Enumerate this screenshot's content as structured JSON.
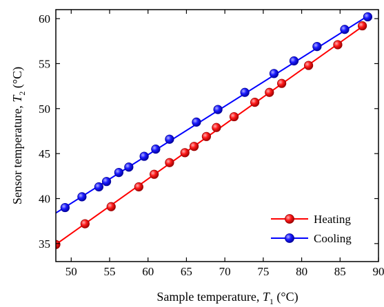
{
  "chart_data": {
    "type": "line",
    "xlabel": {
      "prefix": "Sample temperature, ",
      "symbol": "T",
      "subscript": "1",
      "suffix": " (°C)"
    },
    "ylabel": {
      "prefix": "Sensor temperature, ",
      "symbol": "T",
      "subscript": "2",
      "suffix": " (°C)"
    },
    "xlim": [
      48,
      90
    ],
    "ylim": [
      33,
      61
    ],
    "xticks": [
      50,
      55,
      60,
      65,
      70,
      75,
      80,
      85,
      90
    ],
    "yticks": [
      35,
      40,
      45,
      50,
      55,
      60
    ],
    "legend_position": "bottom-right",
    "grid": false,
    "series": [
      {
        "name": "Heating",
        "color": "#ff0000",
        "marker": "circle",
        "line_start": [
          48,
          34.9
        ],
        "line_end": [
          88.2,
          59.3
        ],
        "points": [
          [
            48.0,
            34.9
          ],
          [
            51.8,
            37.2
          ],
          [
            55.2,
            39.1
          ],
          [
            58.8,
            41.3
          ],
          [
            60.8,
            42.7
          ],
          [
            62.8,
            44.0
          ],
          [
            64.8,
            45.1
          ],
          [
            66.0,
            45.8
          ],
          [
            67.6,
            46.9
          ],
          [
            68.9,
            47.9
          ],
          [
            71.2,
            49.1
          ],
          [
            73.9,
            50.7
          ],
          [
            75.8,
            51.8
          ],
          [
            77.4,
            52.8
          ],
          [
            80.9,
            54.8
          ],
          [
            84.7,
            57.1
          ],
          [
            87.9,
            59.2
          ]
        ]
      },
      {
        "name": "Cooling",
        "color": "#0000ff",
        "marker": "circle",
        "line_start": [
          48,
          38.4
        ],
        "line_end": [
          88.8,
          60.4
        ],
        "points": [
          [
            49.2,
            39.0
          ],
          [
            51.4,
            40.2
          ],
          [
            53.6,
            41.3
          ],
          [
            54.6,
            41.9
          ],
          [
            56.2,
            42.9
          ],
          [
            57.5,
            43.5
          ],
          [
            59.5,
            44.7
          ],
          [
            61.0,
            45.5
          ],
          [
            62.8,
            46.6
          ],
          [
            66.3,
            48.5
          ],
          [
            69.1,
            49.9
          ],
          [
            72.6,
            51.8
          ],
          [
            76.4,
            53.9
          ],
          [
            79.0,
            55.3
          ],
          [
            82.0,
            56.9
          ],
          [
            85.6,
            58.8
          ],
          [
            88.6,
            60.2
          ]
        ]
      }
    ]
  }
}
